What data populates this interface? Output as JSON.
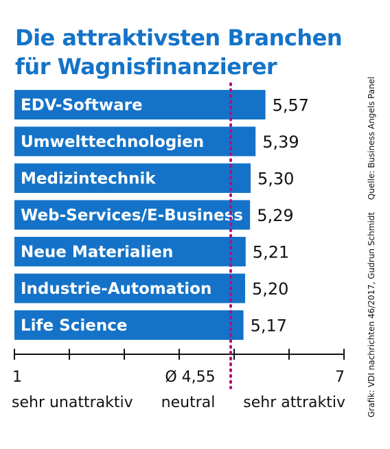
{
  "chart_data": {
    "type": "bar",
    "orientation": "horizontal",
    "title": [
      "Die attraktivsten Branchen",
      "für Wagnisfinanzierer"
    ],
    "categories": [
      "EDV-Software",
      "Umwelttechnologien",
      "Medizintechnik",
      "Web-Services/E-Business",
      "Neue Materialien",
      "Industrie-Automation",
      "Life Science"
    ],
    "values": [
      5.57,
      5.39,
      5.3,
      5.29,
      5.21,
      5.2,
      5.17
    ],
    "value_labels": [
      "5,57",
      "5,39",
      "5,30",
      "5,29",
      "5,21",
      "5,20",
      "5,17"
    ],
    "xlim": [
      1,
      7
    ],
    "ticks": [
      1,
      2,
      3,
      4,
      5,
      6,
      7
    ],
    "tick_labels": [
      {
        "value": 1,
        "label": "1"
      },
      {
        "value": 4.55,
        "label": "Ø 4,55"
      },
      {
        "value": 7,
        "label": "7"
      }
    ],
    "reference_line": {
      "value": 4.55,
      "label": "Ø 4,55",
      "style": "dotted",
      "color": "#b0117a"
    },
    "scale_labels": {
      "low": "sehr unattraktiv",
      "mid": "neutral",
      "high": "sehr attraktiv"
    },
    "bar_color": "#1473c8",
    "grid": false
  },
  "credits": {
    "source": "Quelle: Business Angels Panel",
    "graphic": "Grafik: VDI nachrichten 46/2017, Gudrun Schmidt"
  }
}
